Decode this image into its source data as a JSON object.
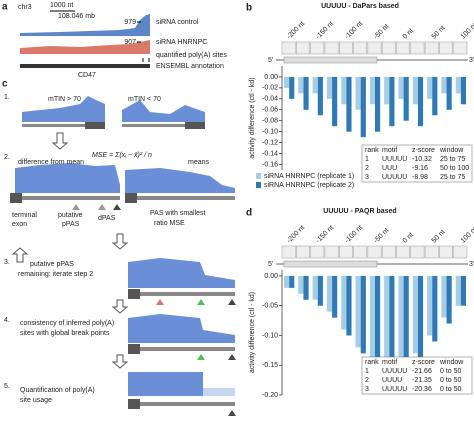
{
  "panel_a": {
    "label": "a",
    "chrom": "chr3",
    "scale": "1000 nt",
    "coordinate": "108.046 mb",
    "tracks": [
      {
        "max": 979,
        "name": "siRNA control"
      },
      {
        "max": 907,
        "name": "siRNA HNRNPC"
      }
    ],
    "sites_label": "quantified poly(A) sites",
    "annotation_label": "ENSEMBL annotation",
    "gene": "CD47"
  },
  "panel_c": {
    "label": "c",
    "steps": [
      {
        "number": "1.",
        "texts": [
          "mTIN > 70",
          "mTIN < 70"
        ]
      },
      {
        "number": "2.",
        "texts": [
          "difference from mean",
          "MSE = Σ(xᵢ − x̄)² / n",
          "means",
          "terminal",
          "exon",
          "putative",
          "pPAS",
          "dPAS",
          "PAS with smallest",
          "ratio MSE"
        ]
      },
      {
        "number": "3.",
        "texts": [
          "putative pPAS",
          "remaining: iterate step 2"
        ]
      },
      {
        "number": "4.",
        "texts": [
          "consistency of inferred poly(A)",
          "sites with global break points"
        ]
      },
      {
        "number": "5.",
        "texts": [
          "Quantification of poly(A)",
          "site usage"
        ]
      }
    ]
  },
  "chart_data": [
    {
      "type": "bar",
      "panel": "b",
      "title": "UUUUU - DaPars based",
      "y_label": "activity difference (ctl - kd)",
      "position_labels": [
        "-200 nt",
        "-150 nt",
        "-100 nt",
        "-50 nt",
        "0 nt",
        "50 nt",
        "100 nt"
      ],
      "categories": [
        null,
        null,
        null,
        null,
        null,
        null,
        null,
        null,
        null,
        null,
        null,
        null,
        null
      ],
      "series": [
        {
          "name": "siRNA HNRNPC (replicate 1)",
          "color": "#a6cde6",
          "values": [
            -0.02,
            -0.03,
            -0.03,
            -0.04,
            -0.05,
            -0.06,
            -0.05,
            -0.05,
            -0.04,
            -0.05,
            -0.04,
            -0.03,
            -0.03
          ]
        },
        {
          "name": "siRNA HNRNPC (replicate 2)",
          "color": "#2f7ab5",
          "values": [
            -0.04,
            -0.06,
            -0.07,
            -0.09,
            -0.1,
            -0.11,
            -0.1,
            -0.09,
            -0.08,
            -0.09,
            -0.07,
            -0.06,
            -0.05
          ]
        }
      ],
      "ylim": [
        0.02,
        -0.17
      ],
      "yticks": [
        {
          "value": 0,
          "label": "0.00"
        },
        -0.02,
        -0.04,
        -0.06,
        -0.08,
        {
          "value": -0.1,
          "label": "-0.10"
        },
        -0.12,
        -0.14,
        -0.16
      ],
      "five_prime": "5'",
      "three_prime": "3'",
      "table": {
        "header": [
          "rank",
          "motif",
          "z-score",
          "window"
        ],
        "rows": [
          [
            1,
            "UUUUU",
            -10.32,
            "25 to 75"
          ],
          [
            2,
            "UUU",
            -9.16,
            "50 to 100"
          ],
          [
            3,
            "UUUUU",
            -8.98,
            "25 to 75"
          ]
        ]
      }
    },
    {
      "type": "bar",
      "panel": "d",
      "title": "UUUUU - PAQR based",
      "y_label": "activity difference (ctl - kd)",
      "position_labels": [
        "-200 nt",
        "-150 nt",
        "-100 nt",
        "-50 nt",
        "0 nt",
        "50 nt",
        "100 nt"
      ],
      "categories": [
        null,
        null,
        null,
        null,
        null,
        null,
        null,
        null,
        null,
        null,
        null,
        null,
        null
      ],
      "series": [
        {
          "name": "siRNA HNRNPC (replicate 1)",
          "color": "#a6cde6",
          "values": [
            -0.02,
            -0.03,
            -0.04,
            -0.06,
            -0.09,
            -0.12,
            -0.15,
            -0.17,
            -0.16,
            -0.13,
            -0.1,
            -0.07,
            -0.05
          ]
        },
        {
          "name": "siRNA HNRNPC (replicate 2)",
          "color": "#2f7ab5",
          "values": [
            -0.02,
            -0.04,
            -0.05,
            -0.07,
            -0.1,
            -0.13,
            -0.16,
            -0.18,
            -0.17,
            -0.14,
            -0.11,
            -0.08,
            -0.05
          ]
        }
      ],
      "ylim": [
        0.01,
        -0.2
      ],
      "yticks": [
        {
          "value": 0,
          "label": "0.00"
        },
        -0.05,
        {
          "value": -0.1,
          "label": "-0.10"
        },
        -0.15,
        {
          "value": -0.2,
          "label": "-0.20"
        }
      ],
      "five_prime": "5'",
      "three_prime": "3'",
      "table": {
        "header": [
          "rank",
          "motif",
          "z-score",
          "window"
        ],
        "rows": [
          [
            1,
            "UUUUU",
            -21.66,
            "0 to 50"
          ],
          [
            2,
            "UUUU",
            -21.35,
            "0 to 50"
          ],
          [
            3,
            "UUUUU",
            -20.36,
            "0 to 50"
          ]
        ]
      }
    }
  ]
}
